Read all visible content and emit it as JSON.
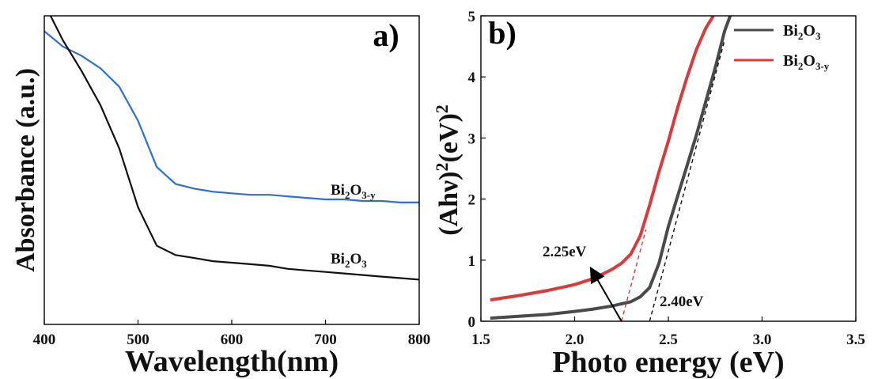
{
  "chart_data": [
    {
      "type": "line",
      "panel_label": "a)",
      "xlabel": "Wavelength(nm)",
      "ylabel": "Absorbance (a.u.)",
      "xlim": [
        400,
        800
      ],
      "ylim": [
        0,
        1
      ],
      "xticks": [
        400,
        500,
        600,
        700,
        800
      ],
      "x": [
        400,
        420,
        440,
        460,
        480,
        500,
        520,
        540,
        560,
        580,
        600,
        620,
        640,
        660,
        680,
        700,
        720,
        740,
        760,
        780,
        800
      ],
      "series": [
        {
          "name": "Bi2O3-y",
          "label_base": "Bi",
          "label_sub1": "2",
          "label_mid": "O",
          "label_sub2": "3-y",
          "color": "#2f6fcf",
          "values": [
            0.95,
            0.9,
            0.87,
            0.83,
            0.77,
            0.66,
            0.51,
            0.455,
            0.44,
            0.43,
            0.425,
            0.42,
            0.42,
            0.415,
            0.41,
            0.405,
            0.405,
            0.4,
            0.4,
            0.395,
            0.395
          ]
        },
        {
          "name": "Bi2O3",
          "label_base": "Bi",
          "label_sub1": "2",
          "label_mid": "O",
          "label_sub2": "3",
          "color": "#111111",
          "values": [
            1.04,
            0.92,
            0.82,
            0.71,
            0.57,
            0.38,
            0.255,
            0.225,
            0.215,
            0.205,
            0.2,
            0.195,
            0.19,
            0.18,
            0.175,
            0.17,
            0.165,
            0.16,
            0.155,
            0.15,
            0.145
          ]
        }
      ]
    },
    {
      "type": "line",
      "panel_label": "b)",
      "xlabel": "Photo energy (eV)",
      "ylabel_base": "(Ahν)",
      "ylabel_sup1": "2",
      "ylabel_mid": "(eV)",
      "ylabel_sup2": "2",
      "xlim": [
        1.5,
        3.5
      ],
      "ylim": [
        0,
        5
      ],
      "xticks": [
        "1.5",
        "2.0",
        "2.5",
        "3.0",
        "3.5"
      ],
      "yticks": [
        "0",
        "1",
        "2",
        "3",
        "4",
        "5"
      ],
      "legend_position": "top-right",
      "series": [
        {
          "name": "Bi2O3",
          "label_base": "Bi",
          "label_sub1": "2",
          "label_mid": "O",
          "label_sub2": "3",
          "color": "#4a4a4a",
          "x": [
            1.55,
            1.7,
            1.85,
            2.0,
            2.1,
            2.2,
            2.3,
            2.35,
            2.4,
            2.45,
            2.5,
            2.55,
            2.6,
            2.65,
            2.7,
            2.75,
            2.8,
            2.83
          ],
          "y": [
            0.05,
            0.08,
            0.11,
            0.16,
            0.2,
            0.25,
            0.32,
            0.4,
            0.55,
            0.95,
            1.55,
            2.05,
            2.55,
            3.05,
            3.6,
            4.15,
            4.75,
            5.0
          ]
        },
        {
          "name": "Bi2O3-y",
          "label_base": "Bi",
          "label_sub1": "2",
          "label_mid": "O",
          "label_sub2": "3-y",
          "color": "#d93a3a",
          "x": [
            1.55,
            1.7,
            1.85,
            2.0,
            2.1,
            2.2,
            2.25,
            2.3,
            2.35,
            2.4,
            2.45,
            2.5,
            2.55,
            2.6,
            2.65,
            2.7,
            2.74
          ],
          "y": [
            0.35,
            0.42,
            0.5,
            0.6,
            0.7,
            0.85,
            0.95,
            1.1,
            1.4,
            1.9,
            2.45,
            2.95,
            3.5,
            4.0,
            4.45,
            4.8,
            5.0
          ]
        }
      ],
      "tangents": [
        {
          "color": "#d93a3a",
          "x": [
            2.25,
            2.38
          ],
          "y": [
            0,
            1.5
          ]
        },
        {
          "color": "#111111",
          "x": [
            2.4,
            2.8
          ],
          "y": [
            0,
            4.6
          ]
        }
      ],
      "annotations": [
        {
          "text": "2.25eV",
          "arrow_from": [
            2.25,
            0
          ],
          "arrow_to": [
            2.09,
            0.85
          ]
        },
        {
          "text": "2.40eV"
        }
      ]
    }
  ]
}
